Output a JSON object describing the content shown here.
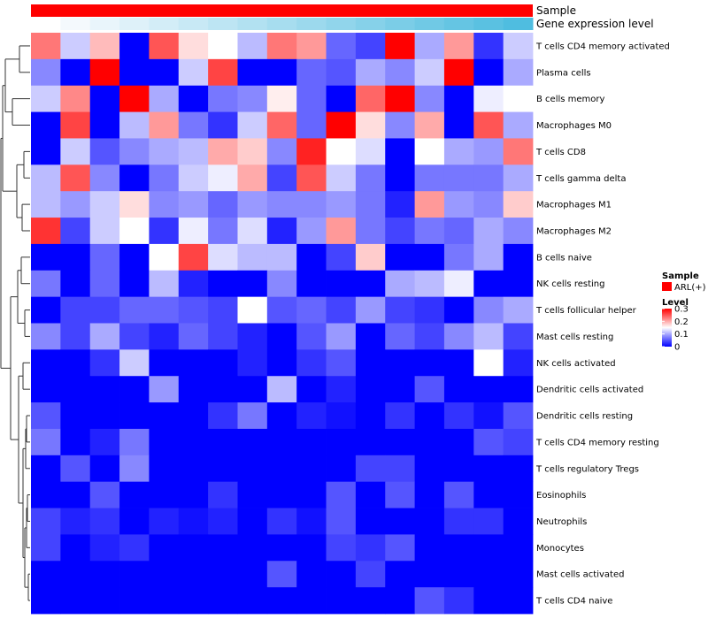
{
  "chart_data": {
    "type": "heatmap",
    "annotation_tracks": [
      {
        "name": "Sample",
        "color": "#ff0000"
      },
      {
        "name": "Gene expression level",
        "colors": [
          "#ffffff",
          "#f4f9fd",
          "#e9f5fb",
          "#def1f9",
          "#d3edf7",
          "#c8e9f5",
          "#bde5f3",
          "#b2e1f1",
          "#a7ddef",
          "#9cd9ed",
          "#91d5eb",
          "#86d1e9",
          "#7bcde7",
          "#70c9e5",
          "#65c5e3",
          "#5ac1e1",
          "#4fbde0"
        ]
      }
    ],
    "rows": [
      "T cells CD4 memory activated",
      "Plasma cells",
      "B cells memory",
      "Macrophages M0",
      "T cells CD8",
      "T cells gamma delta",
      "Macrophages M1",
      "Macrophages M2",
      "B cells naive",
      "NK cells resting",
      "T cells follicular helper",
      "Mast cells resting",
      "NK cells activated",
      "Dendritic cells activated",
      "Dendritic cells resting",
      "T cells CD4 memory resting",
      "T cells regulatory  Tregs",
      "Eosinophils",
      "Neutrophils",
      "Monocytes",
      "Mast cells activated",
      "T cells CD4 naive"
    ],
    "n_columns": 17,
    "values": [
      [
        0.23,
        0.12,
        0.19,
        0.0,
        0.25,
        0.17,
        0.15,
        0.11,
        0.23,
        0.21,
        0.06,
        0.04,
        0.3,
        0.1,
        0.21,
        0.03,
        0.12
      ],
      [
        0.08,
        0.0,
        0.3,
        0.0,
        0.0,
        0.12,
        0.26,
        0.0,
        0.0,
        0.06,
        0.05,
        0.1,
        0.08,
        0.12,
        0.3,
        0.0,
        0.1
      ],
      [
        0.12,
        0.22,
        0.0,
        0.3,
        0.1,
        0.0,
        0.07,
        0.08,
        0.16,
        0.06,
        0.0,
        0.24,
        0.3,
        0.08,
        0.0,
        0.14,
        0.15
      ],
      [
        0.0,
        0.26,
        0.0,
        0.11,
        0.21,
        0.07,
        0.03,
        0.12,
        0.24,
        0.06,
        0.3,
        0.17,
        0.08,
        0.2,
        0.0,
        0.25,
        0.1
      ],
      [
        0.0,
        0.12,
        0.05,
        0.08,
        0.1,
        0.11,
        0.2,
        0.18,
        0.08,
        0.28,
        0.15,
        0.13,
        0.0,
        0.15,
        0.1,
        0.09,
        0.23
      ],
      [
        0.11,
        0.25,
        0.08,
        0.0,
        0.07,
        0.12,
        0.14,
        0.2,
        0.04,
        0.25,
        0.12,
        0.07,
        0.0,
        0.07,
        0.07,
        0.07,
        0.1
      ],
      [
        0.11,
        0.09,
        0.12,
        0.17,
        0.08,
        0.09,
        0.06,
        0.09,
        0.08,
        0.08,
        0.09,
        0.07,
        0.02,
        0.21,
        0.09,
        0.08,
        0.18
      ],
      [
        0.27,
        0.04,
        0.12,
        0.15,
        0.03,
        0.14,
        0.07,
        0.13,
        0.02,
        0.09,
        0.21,
        0.07,
        0.04,
        0.07,
        0.06,
        0.1,
        0.08
      ],
      [
        0.0,
        0.0,
        0.06,
        0.0,
        0.15,
        0.26,
        0.13,
        0.11,
        0.11,
        0.0,
        0.04,
        0.18,
        0.0,
        0.0,
        0.07,
        0.1,
        0.0
      ],
      [
        0.07,
        0.0,
        0.06,
        0.0,
        0.11,
        0.02,
        0.0,
        0.0,
        0.08,
        0.0,
        0.0,
        0.0,
        0.1,
        0.11,
        0.14,
        0.0,
        0.0
      ],
      [
        0.0,
        0.04,
        0.04,
        0.06,
        0.06,
        0.05,
        0.04,
        0.15,
        0.05,
        0.06,
        0.04,
        0.09,
        0.04,
        0.03,
        0.0,
        0.08,
        0.1
      ],
      [
        0.08,
        0.04,
        0.1,
        0.04,
        0.02,
        0.06,
        0.04,
        0.02,
        0.0,
        0.05,
        0.09,
        0.0,
        0.06,
        0.04,
        0.08,
        0.11,
        0.04
      ],
      [
        0.0,
        0.0,
        0.03,
        0.12,
        0.0,
        0.0,
        0.0,
        0.02,
        0.0,
        0.03,
        0.05,
        0.0,
        0.0,
        0.0,
        0.0,
        0.15,
        0.02
      ],
      [
        0.0,
        0.0,
        0.0,
        0.0,
        0.09,
        0.0,
        0.0,
        0.0,
        0.11,
        0.0,
        0.02,
        0.0,
        0.0,
        0.05,
        0.0,
        0.0,
        0.0
      ],
      [
        0.05,
        0.0,
        0.0,
        0.0,
        0.0,
        0.0,
        0.03,
        0.07,
        0.0,
        0.02,
        0.01,
        0.0,
        0.03,
        0.0,
        0.03,
        0.01,
        0.05
      ],
      [
        0.07,
        0.0,
        0.02,
        0.07,
        0.0,
        0.0,
        0.0,
        0.0,
        0.0,
        0.0,
        0.0,
        0.0,
        0.0,
        0.0,
        0.0,
        0.05,
        0.04
      ],
      [
        0.0,
        0.05,
        0.0,
        0.08,
        0.0,
        0.0,
        0.0,
        0.0,
        0.0,
        0.0,
        0.0,
        0.04,
        0.04,
        0.0,
        0.0,
        0.0,
        0.0
      ],
      [
        0.0,
        0.0,
        0.05,
        0.0,
        0.0,
        0.0,
        0.03,
        0.0,
        0.0,
        0.0,
        0.05,
        0.0,
        0.05,
        0.0,
        0.05,
        0.0,
        0.0
      ],
      [
        0.04,
        0.02,
        0.03,
        0.0,
        0.02,
        0.01,
        0.02,
        0.0,
        0.03,
        0.01,
        0.05,
        0.0,
        0.0,
        0.0,
        0.03,
        0.03,
        0.0
      ],
      [
        0.04,
        0.0,
        0.02,
        0.03,
        0.0,
        0.0,
        0.0,
        0.0,
        0.0,
        0.0,
        0.04,
        0.03,
        0.05,
        0.0,
        0.0,
        0.0,
        0.0
      ],
      [
        0.0,
        0.0,
        0.0,
        0.0,
        0.0,
        0.0,
        0.0,
        0.0,
        0.05,
        0.0,
        0.0,
        0.04,
        0.0,
        0.0,
        0.0,
        0.0,
        0.0
      ],
      [
        0.0,
        0.0,
        0.0,
        0.0,
        0.0,
        0.0,
        0.0,
        0.0,
        0.0,
        0.0,
        0.0,
        0.0,
        0.0,
        0.05,
        0.03,
        0.0,
        0.0
      ]
    ],
    "color_scale": {
      "min": 0,
      "mid": 0.15,
      "max": 0.3,
      "low": "#0000ff",
      "mid_color": "#ffffff",
      "high": "#ff0000"
    },
    "legend": {
      "sample_title": "Sample",
      "sample_entry": "ARL(+)",
      "sample_color": "#ff0000",
      "level_title": "Level",
      "level_ticks": [
        "0.3",
        "0.2",
        "0.1",
        "0"
      ],
      "level_tick_values": [
        0.3,
        0.2,
        0.1,
        0
      ]
    },
    "dendrogram": "row"
  }
}
